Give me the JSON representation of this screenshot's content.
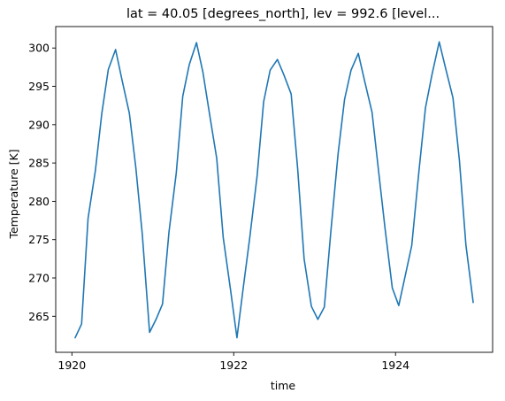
{
  "chart_data": {
    "type": "line",
    "title": "lat = 40.05 [degrees_north], lev = 992.6 [level...",
    "xlabel": "time",
    "ylabel": "Temperature [K]",
    "xlim": [
      1919.8,
      1925.2
    ],
    "ylim": [
      260.3,
      302.8
    ],
    "xticks": [
      1920,
      1922,
      1924
    ],
    "xtick_labels": [
      "1920",
      "1922",
      "1924"
    ],
    "yticks": [
      265,
      270,
      275,
      280,
      285,
      290,
      295,
      300
    ],
    "ytick_labels": [
      "265",
      "270",
      "275",
      "280",
      "285",
      "290",
      "295",
      "300"
    ],
    "grid": false,
    "line_color": "#1f77b4",
    "series": [
      {
        "x": [
          1920.04,
          1920.12,
          1920.2,
          1920.29,
          1920.37,
          1920.45,
          1920.54,
          1920.62,
          1920.71,
          1920.79,
          1920.87,
          1920.96,
          1921.04,
          1921.12,
          1921.2,
          1921.29,
          1921.37,
          1921.45,
          1921.54,
          1921.62,
          1921.71,
          1921.79,
          1921.87,
          1921.96,
          1922.04,
          1922.12,
          1922.2,
          1922.29,
          1922.37,
          1922.45,
          1922.54,
          1922.62,
          1922.71,
          1922.79,
          1922.87,
          1922.96,
          1923.04,
          1923.12,
          1923.2,
          1923.29,
          1923.37,
          1923.45,
          1923.54,
          1923.62,
          1923.71,
          1923.79,
          1923.87,
          1923.96,
          1924.04,
          1924.12,
          1924.2,
          1924.29,
          1924.37,
          1924.45,
          1924.54,
          1924.62,
          1924.71,
          1924.79,
          1924.87,
          1924.96
        ],
        "values": [
          262.2,
          264.0,
          277.8,
          284.0,
          291.5,
          297.2,
          299.8,
          295.8,
          291.5,
          284.4,
          275.7,
          262.9,
          264.6,
          266.6,
          276.0,
          283.7,
          293.7,
          297.8,
          300.7,
          296.8,
          290.8,
          285.6,
          275.3,
          268.5,
          262.2,
          268.9,
          275.4,
          283.4,
          293.0,
          297.1,
          298.5,
          296.5,
          294.0,
          284.3,
          272.5,
          266.3,
          264.6,
          266.2,
          276.0,
          286.2,
          293.3,
          297.1,
          299.3,
          295.6,
          291.6,
          284.0,
          276.5,
          268.7,
          266.4,
          270.3,
          274.2,
          284.0,
          292.2,
          296.5,
          300.8,
          297.3,
          293.5,
          285.3,
          274.3,
          266.8
        ]
      }
    ]
  }
}
